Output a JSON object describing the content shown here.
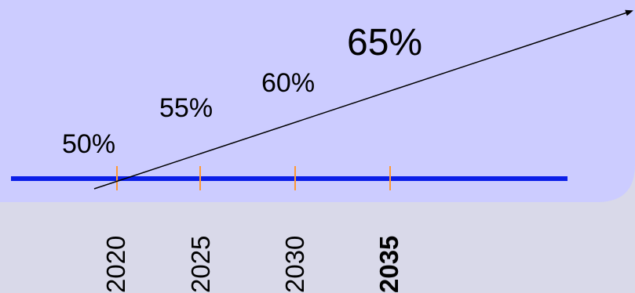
{
  "timeline": {
    "milestones": [
      {
        "year": "2020",
        "percent": "50%",
        "emphasis": false
      },
      {
        "year": "2025",
        "percent": "55%",
        "emphasis": false
      },
      {
        "year": "2030",
        "percent": "60%",
        "emphasis": false
      },
      {
        "year": "2035",
        "percent": "65%",
        "emphasis": true
      }
    ]
  },
  "colors": {
    "panel": "#ccccff",
    "background": "#d9d9e9",
    "axis": "#0b1ee8",
    "tick": "#ff9933",
    "arrow": "#000000"
  }
}
